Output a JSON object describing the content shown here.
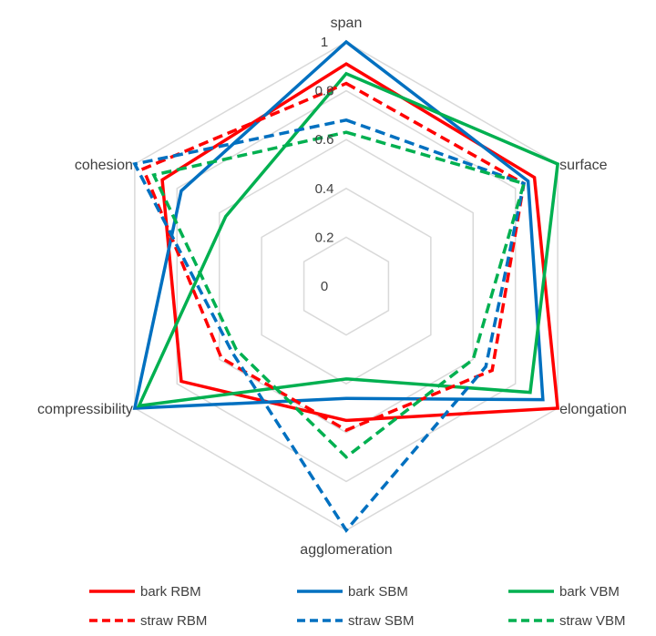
{
  "chart_data": {
    "type": "radar",
    "title": "",
    "axes": [
      "span",
      "surface",
      "elongation",
      "agglomeration",
      "compressibility",
      "cohesion"
    ],
    "ticks": [
      "0",
      "0.2",
      "0.4",
      "0.6",
      "0.8",
      "1"
    ],
    "rlim": [
      0,
      1
    ],
    "grid": true,
    "legend_position": "bottom",
    "series": [
      {
        "name": "bark RBM",
        "color": "#ff0000",
        "dash": "solid",
        "values": [
          0.91,
          0.89,
          1.0,
          0.55,
          0.78,
          0.87
        ]
      },
      {
        "name": "bark SBM",
        "color": "#0070c0",
        "dash": "solid",
        "values": [
          1.0,
          0.86,
          0.93,
          0.46,
          1.0,
          0.78
        ]
      },
      {
        "name": "bark VBM",
        "color": "#00b050",
        "dash": "solid",
        "values": [
          0.87,
          1.0,
          0.87,
          0.38,
          0.98,
          0.57
        ]
      },
      {
        "name": "straw RBM",
        "color": "#ff0000",
        "dash": "dashed",
        "values": [
          0.83,
          0.84,
          0.69,
          0.59,
          0.59,
          0.96
        ]
      },
      {
        "name": "straw SBM",
        "color": "#0070c0",
        "dash": "dashed",
        "values": [
          0.68,
          0.84,
          0.66,
          1.0,
          0.54,
          1.0
        ]
      },
      {
        "name": "straw VBM",
        "color": "#00b050",
        "dash": "dashed",
        "values": [
          0.63,
          0.84,
          0.6,
          0.7,
          0.52,
          0.91
        ]
      }
    ]
  }
}
